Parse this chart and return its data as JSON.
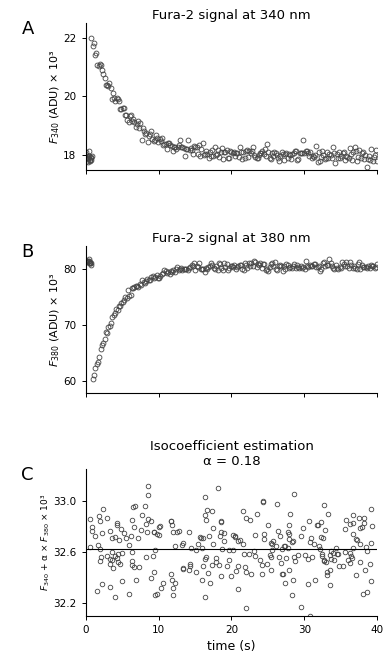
{
  "panel_A": {
    "title": "Fura-2 signal at 340 nm",
    "ylabel": "$F_{340}$ (ADU) × 10³",
    "ylim": [
      17.5,
      22.5
    ],
    "yticks": [
      18,
      20,
      22
    ],
    "xlim": [
      0,
      40
    ],
    "baseline": 18.0,
    "peak": 22.0,
    "tau": 4.5,
    "noise": 0.13,
    "n_points": 240,
    "t_start": 0.8,
    "pre_n": 18,
    "pre_mean": 17.95,
    "pre_noise": 0.1
  },
  "panel_B": {
    "title": "Fura-2 signal at 380 nm",
    "ylabel": "$F_{380}$ (ADU) × 10³",
    "ylim": [
      58,
      84
    ],
    "yticks": [
      60,
      70,
      80
    ],
    "xlim": [
      0,
      40
    ],
    "baseline": 80.5,
    "trough": 60.0,
    "tau": 3.5,
    "noise": 0.4,
    "n_points": 220,
    "pre_n": 12,
    "pre_mean": 81.2,
    "pre_noise": 0.25
  },
  "panel_C": {
    "title": "Isocoefficient estimation",
    "subtitle": "α = 0.18",
    "ylabel": "$F_{340}$ + α × $F_{380}$ × 10³",
    "xlabel": "time (s)",
    "ylim": [
      32.1,
      33.25
    ],
    "yticks": [
      32.2,
      32.6,
      33.0
    ],
    "xlim": [
      0,
      40
    ],
    "mean_line": 32.62,
    "noise": 0.19,
    "n_points": 280
  },
  "label_fontsize": 9,
  "title_fontsize": 9.5,
  "panel_label_fontsize": 13,
  "marker_size": 3.5,
  "marker_color": "none",
  "marker_edge_color": "#444444",
  "marker_lw": 0.6,
  "bg_color": "#ffffff",
  "axes_color": "#000000"
}
